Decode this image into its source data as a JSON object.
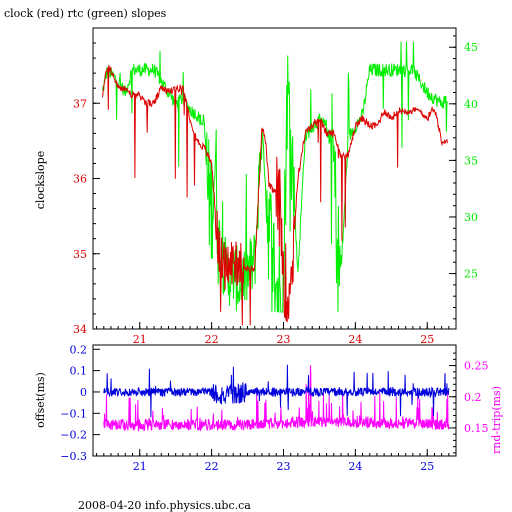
{
  "title": "clock (red) rtc (green) slopes",
  "footer": "2008-04-20 info.physics.ubc.ca",
  "colors": {
    "clock": "#dd0000",
    "rtc": "#00ee00",
    "offset": "#0000dd",
    "roundtrip": "#ff00ff",
    "axis": "#000000"
  },
  "chart_data": [
    {
      "type": "line",
      "title": "clock (red) rtc (green) slopes",
      "ylabel": "clockslope",
      "y2label": "",
      "xlim": [
        20.35,
        25.4
      ],
      "ylim": [
        34,
        38
      ],
      "y2lim": [
        20.1,
        46.7
      ],
      "xticks": [
        21,
        22,
        23,
        24,
        25
      ],
      "yticks": [
        34,
        35,
        36,
        37
      ],
      "y2ticks": [
        25,
        30,
        35,
        40,
        45
      ],
      "grid": false,
      "series": [
        {
          "name": "clock (red)",
          "axis": "left",
          "x": [
            20.48,
            20.55,
            20.62,
            20.7,
            20.8,
            20.9,
            21.0,
            21.1,
            21.2,
            21.3,
            21.4,
            21.5,
            21.6,
            21.7,
            21.8,
            21.9,
            22.0,
            22.05,
            22.1,
            22.15,
            22.2,
            22.3,
            22.4,
            22.5,
            22.6,
            22.7,
            22.75,
            22.8,
            22.9,
            22.95,
            23.0,
            23.05,
            23.1,
            23.2,
            23.3,
            23.4,
            23.5,
            23.6,
            23.7,
            23.8,
            23.9,
            24.0,
            24.1,
            24.2,
            24.3,
            24.4,
            24.5,
            24.6,
            24.7,
            24.8,
            24.9,
            25.0,
            25.1,
            25.2,
            25.28
          ],
          "y": [
            37.1,
            37.5,
            37.4,
            37.2,
            37.2,
            37.1,
            37.1,
            37.0,
            37.0,
            37.2,
            37.15,
            37.2,
            37.2,
            36.8,
            36.5,
            36.4,
            36.2,
            35.6,
            35.0,
            34.9,
            34.8,
            34.9,
            34.9,
            34.8,
            34.8,
            36.7,
            36.5,
            35.9,
            35.8,
            35.6,
            34.8,
            34.5,
            34.6,
            36.0,
            36.6,
            36.7,
            36.8,
            36.6,
            36.6,
            36.3,
            36.3,
            36.7,
            36.8,
            36.7,
            36.7,
            36.9,
            36.8,
            36.9,
            36.9,
            36.9,
            36.9,
            36.8,
            36.95,
            36.5,
            36.5
          ]
        },
        {
          "name": "rtc (green)",
          "axis": "right",
          "x": [
            20.48,
            20.55,
            20.62,
            20.7,
            20.8,
            20.9,
            21.0,
            21.1,
            21.2,
            21.3,
            21.4,
            21.5,
            21.6,
            21.7,
            21.8,
            21.9,
            21.95,
            22.0,
            22.05,
            22.1,
            22.2,
            22.3,
            22.4,
            22.5,
            22.6,
            22.7,
            22.75,
            22.8,
            22.9,
            22.95,
            23.0,
            23.05,
            23.1,
            23.2,
            23.3,
            23.4,
            23.5,
            23.6,
            23.7,
            23.75,
            23.8,
            23.9,
            24.0,
            24.1,
            24.2,
            24.3,
            24.4,
            24.5,
            24.6,
            24.7,
            24.8,
            24.9,
            25.0,
            25.1,
            25.2,
            25.28
          ],
          "y": [
            41.0,
            43.0,
            42.5,
            42.0,
            41.0,
            43.0,
            43.0,
            43.0,
            43.0,
            42.0,
            41.0,
            40.0,
            40.5,
            39.5,
            39.0,
            38.0,
            32.0,
            31.0,
            35.0,
            28.0,
            25.0,
            25.0,
            24.0,
            25.0,
            26.0,
            38.0,
            33.0,
            29.0,
            24.0,
            23.0,
            24.0,
            41.0,
            38.0,
            25.0,
            37.0,
            38.0,
            38.5,
            38.0,
            35.0,
            27.0,
            25.0,
            37.0,
            38.0,
            39.0,
            43.0,
            43.0,
            43.0,
            43.0,
            43.0,
            43.0,
            43.0,
            42.0,
            41.0,
            40.5,
            40.0,
            40.5
          ]
        }
      ]
    },
    {
      "type": "line",
      "title": "",
      "ylabel": "offset(ms)",
      "y2label": "rnd-trip(ms)",
      "xlim": [
        20.35,
        25.4
      ],
      "ylim": [
        -0.3,
        0.22
      ],
      "y2lim": [
        0.105,
        0.283
      ],
      "xticks": [
        21,
        22,
        23,
        24,
        25
      ],
      "yticks": [
        -0.3,
        -0.2,
        -0.1,
        0,
        0.1,
        0.2
      ],
      "ytick_labels": [
        "−0.3",
        "−0.2",
        "−0.1",
        "0",
        "0.1",
        "0.2"
      ],
      "y2ticks": [
        0.15,
        0.2,
        0.25
      ],
      "grid": false,
      "series": [
        {
          "name": "offset",
          "axis": "left",
          "x": [
            20.5,
            21.0,
            21.5,
            22.0,
            22.2,
            22.5,
            23.0,
            23.5,
            24.0,
            24.5,
            25.0,
            25.3
          ],
          "y": [
            0.0,
            0.0,
            0.0,
            0.0,
            -0.02,
            0.0,
            0.0,
            0.0,
            0.0,
            0.0,
            0.0,
            0.0
          ]
        },
        {
          "name": "rnd-trip",
          "axis": "right",
          "x": [
            20.5,
            21.0,
            21.5,
            22.0,
            22.5,
            23.0,
            23.5,
            24.0,
            24.5,
            25.0,
            25.3
          ],
          "y": [
            0.155,
            0.155,
            0.155,
            0.155,
            0.155,
            0.158,
            0.16,
            0.16,
            0.157,
            0.156,
            0.156
          ]
        }
      ]
    }
  ]
}
